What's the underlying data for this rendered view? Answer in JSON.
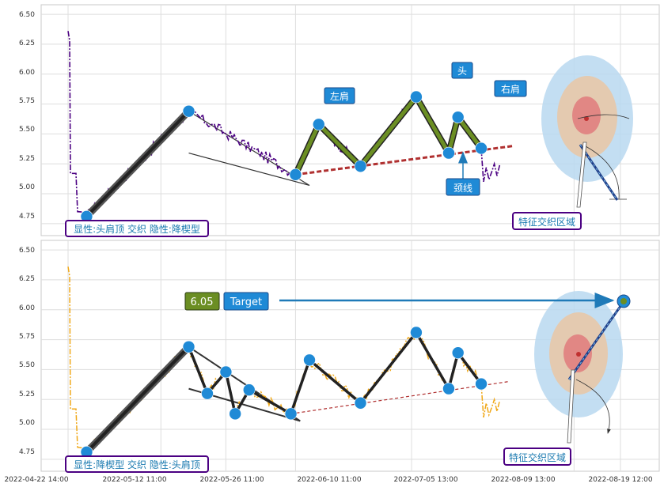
{
  "chart_data": [
    {
      "type": "line",
      "panel": "top",
      "series_color": "#4b0082",
      "series_style": "dash-dot",
      "ylim": [
        4.65,
        6.58
      ],
      "yticks": [
        "6.50",
        "6.25",
        "6.00",
        "5.75",
        "5.50",
        "5.25",
        "5.00",
        "4.75"
      ],
      "grid": true,
      "pivots": [
        {
          "x": "2022-04-26",
          "y": 4.81
        },
        {
          "x": "2022-05-18",
          "y": 5.69
        },
        {
          "x": "2022-06-10",
          "y": 5.16
        },
        {
          "x": "2022-06-15",
          "y": 5.58
        },
        {
          "x": "2022-06-24",
          "y": 5.23
        },
        {
          "x": "2022-07-06",
          "y": 5.81
        },
        {
          "x": "2022-07-13",
          "y": 5.34
        },
        {
          "x": "2022-07-15",
          "y": 5.64
        },
        {
          "x": "2022-07-20",
          "y": 5.38
        }
      ],
      "neckline": {
        "from": {
          "x": "2022-06-10",
          "y": 5.16
        },
        "to": {
          "x": "2022-07-27",
          "y": 5.4
        }
      },
      "wedge_lines": [
        {
          "from": {
            "x": "2022-05-18",
            "y": 5.69
          },
          "to": {
            "x": "2022-06-13",
            "y": 5.07
          }
        },
        {
          "from": {
            "x": "2022-05-18",
            "y": 5.34
          },
          "to": {
            "x": "2022-06-13",
            "y": 5.07
          }
        }
      ],
      "labels": {
        "left_shoulder": "左肩",
        "head": "头",
        "right_shoulder": "右肩",
        "neckline": "颈线",
        "feature_zone": "特征交织区域",
        "caption": "显性:头肩顶 交织 隐性:降楔型"
      }
    },
    {
      "type": "line",
      "panel": "bottom",
      "series_color": "#f0a818",
      "series_style": "dash-dot",
      "ylim": [
        4.65,
        6.58
      ],
      "yticks": [
        "6.50",
        "6.25",
        "6.00",
        "5.75",
        "5.50",
        "5.25",
        "5.00",
        "4.75"
      ],
      "grid": true,
      "pivots": [
        {
          "x": "2022-04-26",
          "y": 4.81
        },
        {
          "x": "2022-05-18",
          "y": 5.69
        },
        {
          "x": "2022-05-22",
          "y": 5.3
        },
        {
          "x": "2022-05-26",
          "y": 5.48
        },
        {
          "x": "2022-05-28",
          "y": 5.13
        },
        {
          "x": "2022-05-31",
          "y": 5.33
        },
        {
          "x": "2022-06-09",
          "y": 5.13
        },
        {
          "x": "2022-06-13",
          "y": 5.58
        },
        {
          "x": "2022-06-24",
          "y": 5.22
        },
        {
          "x": "2022-07-06",
          "y": 5.81
        },
        {
          "x": "2022-07-13",
          "y": 5.34
        },
        {
          "x": "2022-07-15",
          "y": 5.64
        },
        {
          "x": "2022-07-20",
          "y": 5.38
        }
      ],
      "neckline": {
        "from": {
          "x": "2022-06-09",
          "y": 5.13
        },
        "to": {
          "x": "2022-07-26",
          "y": 5.4
        }
      },
      "wedge_lines": [
        {
          "from": {
            "x": "2022-05-18",
            "y": 5.69
          },
          "to": {
            "x": "2022-06-11",
            "y": 5.07
          }
        },
        {
          "from": {
            "x": "2022-05-18",
            "y": 5.34
          },
          "to": {
            "x": "2022-06-11",
            "y": 5.07
          }
        }
      ],
      "target": {
        "x": "2022-08-01",
        "y": 6.05,
        "value_label": "6.05",
        "label": "Target"
      },
      "labels": {
        "feature_zone": "特征交织区域",
        "caption": "显性:降楔型 交织 隐性:头肩顶"
      }
    }
  ],
  "x_axis": {
    "tick_labels": [
      "2022-04-22 14:00",
      "2022-05-12 11:00",
      "2022-05-26 11:00",
      "2022-06-10 11:00",
      "2022-07-05 13:00",
      "2022-08-09 13:00",
      "2022-08-19 12:00"
    ]
  },
  "colors": {
    "pivot_dot": "#1f8ad6",
    "pattern_fill": "#6b8e23",
    "neckline": "#b03030",
    "label_box": "#1f8ad6",
    "caption_border": "#4b0082",
    "caption_text": "#1a7ab0",
    "zone_outer": "#b8d8f0",
    "zone_mid": "#e8c8a8",
    "zone_inner": "#e08080",
    "target_value_box": "#6b8e23"
  }
}
